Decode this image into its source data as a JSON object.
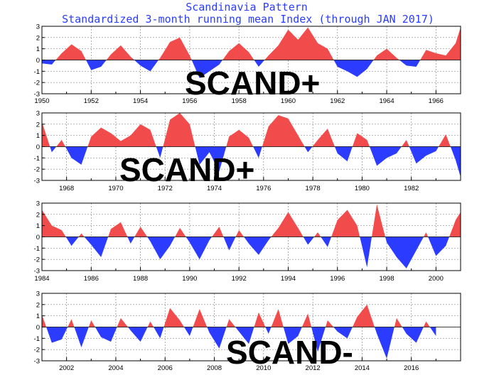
{
  "chart_title": "Scandinavia Pattern",
  "chart_subtitle": "Standardized 3-month running mean Index (through JAN 2017)",
  "colors": {
    "positive": "#f24b4b",
    "negative": "#2b3bff",
    "title": "#2a3cff"
  },
  "chart_data": [
    {
      "type": "area",
      "panel": 1,
      "x_start": 1950.0,
      "x_end": 1967.0,
      "ylim": [
        -3,
        3
      ],
      "yticks": [
        "3",
        "2",
        "1",
        "0",
        "-1",
        "-2",
        "-3"
      ],
      "xticks": [
        "1950",
        "1952",
        "1954",
        "1956",
        "1958",
        "1960",
        "1962",
        "1964",
        "1966"
      ],
      "annotation": "SCAND+",
      "x": [
        1950.0,
        1950.4,
        1950.8,
        1951.2,
        1951.6,
        1952.0,
        1952.4,
        1952.8,
        1953.2,
        1953.6,
        1954.0,
        1954.4,
        1954.8,
        1955.2,
        1955.6,
        1956.0,
        1956.4,
        1956.8,
        1957.2,
        1957.6,
        1958.0,
        1958.4,
        1958.8,
        1959.2,
        1959.6,
        1960.0,
        1960.4,
        1960.8,
        1961.2,
        1961.6,
        1962.0,
        1962.4,
        1962.8,
        1963.2,
        1963.6,
        1964.0,
        1964.4,
        1964.8,
        1965.2,
        1965.6,
        1966.0,
        1966.4,
        1966.8,
        1967.0
      ],
      "values": [
        -0.3,
        -0.4,
        0.6,
        1.4,
        0.8,
        -0.9,
        -0.6,
        0.5,
        1.3,
        0.3,
        -0.5,
        -1.0,
        0.2,
        1.6,
        2.0,
        0.4,
        -1.6,
        -1.0,
        -0.4,
        0.8,
        1.5,
        0.7,
        -0.6,
        0.4,
        1.3,
        2.7,
        1.8,
        2.9,
        1.5,
        1.0,
        -0.6,
        -1.0,
        -1.5,
        -0.8,
        0.4,
        1.0,
        0.2,
        -0.5,
        -0.6,
        0.9,
        0.6,
        0.4,
        1.5,
        2.9
      ]
    },
    {
      "type": "area",
      "panel": 2,
      "x_start": 1967.0,
      "x_end": 1984.0,
      "ylim": [
        -3,
        3
      ],
      "yticks": [
        "3",
        "2",
        "1",
        "0",
        "-1",
        "-2",
        "-3"
      ],
      "xticks": [
        "1968",
        "1970",
        "1972",
        "1974",
        "1976",
        "1978",
        "1980",
        "1982"
      ],
      "annotation": "SCAND+",
      "x": [
        1967.0,
        1967.4,
        1967.8,
        1968.2,
        1968.6,
        1969.0,
        1969.4,
        1969.8,
        1970.2,
        1970.6,
        1971.0,
        1971.4,
        1971.8,
        1972.2,
        1972.6,
        1973.0,
        1973.4,
        1973.8,
        1974.2,
        1974.6,
        1975.0,
        1975.4,
        1975.8,
        1976.2,
        1976.6,
        1977.0,
        1977.4,
        1977.8,
        1978.2,
        1978.6,
        1979.0,
        1979.4,
        1979.8,
        1980.2,
        1980.6,
        1981.0,
        1981.4,
        1981.8,
        1982.2,
        1982.6,
        1983.0,
        1983.4,
        1983.8,
        1984.0
      ],
      "values": [
        2.2,
        -0.5,
        0.6,
        -1.0,
        -1.6,
        0.9,
        1.7,
        1.2,
        0.5,
        1.0,
        2.0,
        1.5,
        -1.0,
        2.4,
        3.0,
        2.0,
        -1.6,
        -0.5,
        -2.2,
        0.9,
        1.5,
        0.8,
        -1.0,
        1.8,
        2.8,
        2.5,
        1.0,
        -0.5,
        0.6,
        1.6,
        -0.6,
        -1.3,
        1.2,
        0.6,
        -1.7,
        -1.0,
        -0.6,
        0.6,
        -1.5,
        -0.8,
        -0.4,
        1.1,
        -1.2,
        -2.7
      ]
    },
    {
      "type": "area",
      "panel": 3,
      "x_start": 1984.0,
      "x_end": 2001.0,
      "ylim": [
        -3,
        3
      ],
      "yticks": [
        "3",
        "2",
        "1",
        "0",
        "-1",
        "-2",
        "-3"
      ],
      "xticks": [
        "1984",
        "1986",
        "1988",
        "1990",
        "1992",
        "1994",
        "1996",
        "1998",
        "2000"
      ],
      "x": [
        1984.0,
        1984.4,
        1984.8,
        1985.2,
        1985.6,
        1986.0,
        1986.4,
        1986.8,
        1987.2,
        1987.6,
        1988.0,
        1988.4,
        1988.8,
        1989.2,
        1989.6,
        1990.0,
        1990.4,
        1990.8,
        1991.2,
        1991.6,
        1992.0,
        1992.4,
        1992.8,
        1993.2,
        1993.6,
        1994.0,
        1994.4,
        1994.8,
        1995.2,
        1995.6,
        1996.0,
        1996.4,
        1996.8,
        1997.2,
        1997.6,
        1998.0,
        1998.4,
        1998.8,
        1999.2,
        1999.6,
        2000.0,
        2000.4,
        2000.8,
        2001.0
      ],
      "values": [
        2.4,
        1.0,
        0.6,
        -0.8,
        0.3,
        -0.7,
        -1.8,
        0.7,
        1.3,
        -0.6,
        0.9,
        -0.4,
        -2.0,
        -0.8,
        0.8,
        -0.5,
        -2.0,
        -0.3,
        0.9,
        -1.2,
        0.6,
        -0.6,
        -1.6,
        -0.3,
        0.8,
        2.2,
        0.8,
        -0.7,
        0.4,
        -0.9,
        1.5,
        2.4,
        1.0,
        -2.7,
        2.9,
        -0.5,
        -1.8,
        -2.8,
        -1.2,
        0.4,
        -1.7,
        -0.8,
        1.5,
        2.2
      ]
    },
    {
      "type": "area",
      "panel": 4,
      "x_start": 2001.0,
      "x_end": 2018.0,
      "ylim": [
        -3,
        3
      ],
      "yticks": [
        "3",
        "2",
        "1",
        "0",
        "-1",
        "-2",
        "-3"
      ],
      "xticks": [
        "2002",
        "2004",
        "2006",
        "2008",
        "2010",
        "2012",
        "2014",
        "2016"
      ],
      "annotation": "SCAND-",
      "x": [
        2001.0,
        2001.4,
        2001.8,
        2002.2,
        2002.6,
        2003.0,
        2003.4,
        2003.8,
        2004.2,
        2004.6,
        2005.0,
        2005.4,
        2005.8,
        2006.2,
        2006.6,
        2007.0,
        2007.4,
        2007.8,
        2008.2,
        2008.6,
        2009.0,
        2009.4,
        2009.8,
        2010.2,
        2010.6,
        2011.0,
        2011.4,
        2011.8,
        2012.2,
        2012.6,
        2013.0,
        2013.4,
        2013.8,
        2014.2,
        2014.6,
        2015.0,
        2015.4,
        2015.8,
        2016.2,
        2016.6,
        2017.0
      ],
      "values": [
        1.1,
        -1.4,
        -1.1,
        0.7,
        -1.8,
        0.6,
        -0.9,
        -1.3,
        0.8,
        -0.3,
        -1.3,
        0.5,
        -1.0,
        1.7,
        0.6,
        -0.8,
        1.6,
        -0.5,
        -1.9,
        0.7,
        -0.4,
        -1.5,
        1.3,
        -0.6,
        1.6,
        -1.5,
        -0.8,
        1.2,
        -2.2,
        0.6,
        -0.4,
        -1.0,
        0.9,
        2.0,
        -0.6,
        -2.8,
        0.8,
        -0.6,
        -1.4,
        0.5,
        -0.8
      ]
    }
  ]
}
